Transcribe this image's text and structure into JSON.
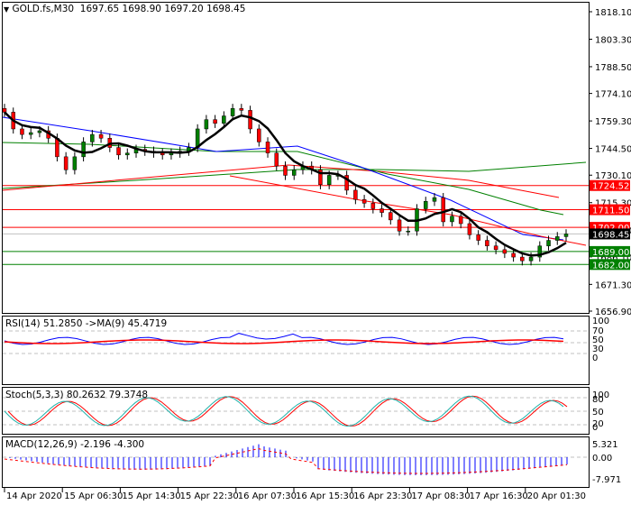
{
  "header": {
    "symbol_title": "GOLD.fs,M30",
    "ohlc": "1697.65 1698.90 1697.20 1698.45",
    "collapse_icon": "triangle-down-icon"
  },
  "main_pane": {
    "price_axis_labels": [
      "1818.10",
      "1803.30",
      "1788.50",
      "1774.10",
      "1759.30",
      "1744.50",
      "1730.10",
      "1715.30",
      "1700.50",
      "1686.10",
      "1671.30",
      "1656.90"
    ],
    "levels": [
      {
        "value": "1724.52",
        "color": "#ff0000",
        "text_color": "#ffffff"
      },
      {
        "value": "1711.50",
        "color": "#ff0000",
        "text_color": "#ffffff"
      },
      {
        "value": "1702.00",
        "color": "#ff0000",
        "text_color": "#ffffff"
      },
      {
        "value": "1698.45",
        "color": "#000000",
        "text_color": "#ffffff"
      },
      {
        "value": "1689.00",
        "color": "#008000",
        "text_color": "#ffffff"
      },
      {
        "value": "1682.00",
        "color": "#008000",
        "text_color": "#ffffff"
      }
    ]
  },
  "rsi_pane": {
    "title": "RSI(14) 51.2850  ->MA(9) 45.4719",
    "axis_labels": [
      "100",
      "70",
      "50",
      "30",
      "0"
    ]
  },
  "stoch_pane": {
    "title": "Stoch(5,3,3) 80.2632 79.3748",
    "axis_labels": [
      "100",
      "80",
      "50",
      "20",
      "0"
    ]
  },
  "macd_pane": {
    "title": "MACD(12,26,9) -2.196 -4.300",
    "axis_labels": [
      "5.321",
      "0.00",
      "-7.971"
    ]
  },
  "time_axis": {
    "labels": [
      "14 Apr 2020",
      "15 Apr 06:30",
      "15 Apr 14:30",
      "15 Apr 22:30",
      "16 Apr 07:30",
      "16 Apr 15:30",
      "16 Apr 23:30",
      "17 Apr 08:30",
      "17 Apr 16:30",
      "20 Apr 01:30"
    ]
  },
  "colors": {
    "bull_candle": "#008000",
    "bear_candle": "#ff0000",
    "ma_fast": "#000000",
    "ma_blue": "#0000ff",
    "ma_red": "#ff0000",
    "ma_green": "#008000",
    "rsi": "#0000ff",
    "rsi_ma": "#ff0000",
    "stoch_main": "#20b2aa",
    "stoch_signal": "#ff0000",
    "macd_hist": "#0000ff",
    "macd_signal": "#ff0000"
  },
  "chart_data": [
    {
      "type": "candlestick",
      "title": "GOLD.fs,M30",
      "ohlc_last": {
        "open": 1697.65,
        "high": 1698.9,
        "low": 1697.2,
        "close": 1698.45
      },
      "ylim": [
        1656.9,
        1818.1
      ],
      "x_tick_labels": [
        "14 Apr 2020",
        "15 Apr 06:30",
        "15 Apr 14:30",
        "15 Apr 22:30",
        "16 Apr 07:30",
        "16 Apr 15:30",
        "16 Apr 23:30",
        "17 Apr 08:30",
        "17 Apr 16:30",
        "20 Apr 01:30"
      ],
      "horizontal_levels": {
        "resistance": [
          1724.52,
          1711.5,
          1702.0
        ],
        "support": [
          1689.0,
          1682.0
        ],
        "current_price": 1698.45
      },
      "approx_close_path": [
        1764,
        1755,
        1752,
        1753,
        1754,
        1750,
        1740,
        1733,
        1740,
        1748,
        1752,
        1750,
        1745,
        1741,
        1742,
        1744,
        1743,
        1742,
        1741,
        1742,
        1743,
        1745,
        1755,
        1760,
        1758,
        1762,
        1766,
        1765,
        1755,
        1748,
        1742,
        1735,
        1730,
        1733,
        1735,
        1733,
        1725,
        1730,
        1730,
        1722,
        1717,
        1715,
        1712,
        1710,
        1706,
        1700,
        1700,
        1712,
        1716,
        1718,
        1705,
        1708,
        1704,
        1698,
        1695,
        1692,
        1690,
        1688,
        1686,
        1684,
        1686,
        1692,
        1695,
        1697,
        1698.45
      ],
      "moving_averages": [
        {
          "name": "MA fast (black)",
          "start": 1766,
          "end": 1695
        },
        {
          "name": "MA blue",
          "start": 1762,
          "end": 1704
        },
        {
          "name": "MA red (rising then falling)",
          "start": 1730,
          "end": 1724.5
        },
        {
          "name": "MA green long",
          "start": 1730,
          "end": 1742
        }
      ]
    },
    {
      "type": "line",
      "title": "RSI(14) 51.2850 ->MA(9) 45.4719",
      "ylim": [
        0,
        100
      ],
      "levels": [
        70,
        50,
        30
      ],
      "series": [
        {
          "name": "RSI(14)",
          "last": 51.285
        },
        {
          "name": "MA(9)",
          "last": 45.4719
        }
      ]
    },
    {
      "type": "line",
      "title": "Stoch(5,3,3) 80.2632 79.3748",
      "ylim": [
        0,
        100
      ],
      "levels": [
        80,
        50,
        20
      ],
      "series": [
        {
          "name": "%K",
          "last": 80.2632
        },
        {
          "name": "%D",
          "last": 79.3748
        }
      ]
    },
    {
      "type": "bar",
      "title": "MACD(12,26,9) -2.196 -4.300",
      "ylim": [
        -7.971,
        5.321
      ],
      "series": [
        {
          "name": "MACD",
          "last": -2.196
        },
        {
          "name": "Signal",
          "last": -4.3
        }
      ]
    }
  ]
}
